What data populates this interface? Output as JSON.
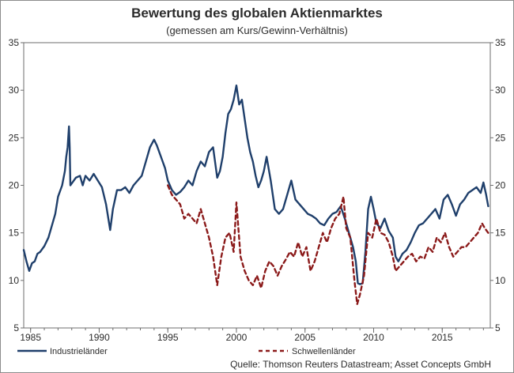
{
  "chart_data": {
    "type": "line",
    "title": "Bewertung des globalen Aktienmarktes",
    "subtitle": "(gemessen am Kurs/Gewinn-Verhältnis)",
    "xlabel": "",
    "ylabel": "",
    "xlim": [
      1984.5,
      2018.5
    ],
    "ylim": [
      5,
      35
    ],
    "y_ticks": [
      5,
      10,
      15,
      20,
      25,
      30,
      35
    ],
    "x_ticks": [
      1985,
      1990,
      1995,
      2000,
      2005,
      2010,
      2015
    ],
    "grid": false,
    "legend_position": "bottom",
    "source": "Quelle: Thomson Reuters Datastream; Asset Concepts GmbH",
    "colors": {
      "industrielaender": "#1f3f6b",
      "schwellenlaender": "#8b1a1a"
    },
    "series": [
      {
        "name": "Industrieländer",
        "style": "solid",
        "points": [
          [
            1984.5,
            13.2
          ],
          [
            1984.7,
            12.0
          ],
          [
            1984.9,
            11.0
          ],
          [
            1985.1,
            11.8
          ],
          [
            1985.3,
            12.0
          ],
          [
            1985.5,
            12.8
          ],
          [
            1985.7,
            13.0
          ],
          [
            1986.0,
            13.6
          ],
          [
            1986.3,
            14.5
          ],
          [
            1986.5,
            15.5
          ],
          [
            1986.8,
            17.0
          ],
          [
            1987.0,
            18.8
          ],
          [
            1987.3,
            20.0
          ],
          [
            1987.5,
            21.5
          ],
          [
            1987.6,
            23.0
          ],
          [
            1987.7,
            24.0
          ],
          [
            1987.8,
            26.2
          ],
          [
            1987.85,
            24.0
          ],
          [
            1987.9,
            20.0
          ],
          [
            1988.0,
            20.2
          ],
          [
            1988.3,
            20.8
          ],
          [
            1988.6,
            21.0
          ],
          [
            1988.8,
            20.0
          ],
          [
            1989.0,
            21.0
          ],
          [
            1989.3,
            20.5
          ],
          [
            1989.6,
            21.2
          ],
          [
            1989.9,
            20.5
          ],
          [
            1990.2,
            19.8
          ],
          [
            1990.5,
            18.0
          ],
          [
            1990.8,
            15.3
          ],
          [
            1991.0,
            17.5
          ],
          [
            1991.3,
            19.5
          ],
          [
            1991.6,
            19.5
          ],
          [
            1991.9,
            19.8
          ],
          [
            1992.2,
            19.2
          ],
          [
            1992.5,
            20.0
          ],
          [
            1992.8,
            20.5
          ],
          [
            1993.1,
            21.0
          ],
          [
            1993.4,
            22.5
          ],
          [
            1993.7,
            24.0
          ],
          [
            1994.0,
            24.8
          ],
          [
            1994.2,
            24.2
          ],
          [
            1994.5,
            23.0
          ],
          [
            1994.8,
            21.8
          ],
          [
            1995.0,
            20.5
          ],
          [
            1995.3,
            19.5
          ],
          [
            1995.6,
            19.0
          ],
          [
            1995.9,
            19.3
          ],
          [
            1996.2,
            19.8
          ],
          [
            1996.5,
            20.5
          ],
          [
            1996.8,
            20.0
          ],
          [
            1997.1,
            21.5
          ],
          [
            1997.4,
            22.5
          ],
          [
            1997.7,
            22.0
          ],
          [
            1998.0,
            23.5
          ],
          [
            1998.3,
            24.0
          ],
          [
            1998.6,
            20.8
          ],
          [
            1998.8,
            21.5
          ],
          [
            1999.0,
            23.0
          ],
          [
            1999.2,
            25.5
          ],
          [
            1999.4,
            27.5
          ],
          [
            1999.6,
            28.0
          ],
          [
            1999.8,
            29.0
          ],
          [
            2000.0,
            30.5
          ],
          [
            2000.2,
            28.5
          ],
          [
            2000.4,
            29.0
          ],
          [
            2000.6,
            27.0
          ],
          [
            2000.8,
            25.0
          ],
          [
            2001.0,
            23.5
          ],
          [
            2001.2,
            22.5
          ],
          [
            2001.4,
            21.0
          ],
          [
            2001.6,
            19.8
          ],
          [
            2001.8,
            20.5
          ],
          [
            2002.0,
            21.5
          ],
          [
            2002.2,
            23.0
          ],
          [
            2002.5,
            20.5
          ],
          [
            2002.8,
            17.5
          ],
          [
            2003.1,
            17.0
          ],
          [
            2003.4,
            17.5
          ],
          [
            2003.7,
            19.0
          ],
          [
            2004.0,
            20.5
          ],
          [
            2004.3,
            18.5
          ],
          [
            2004.6,
            18.0
          ],
          [
            2004.9,
            17.5
          ],
          [
            2005.2,
            17.0
          ],
          [
            2005.5,
            16.8
          ],
          [
            2005.8,
            16.5
          ],
          [
            2006.1,
            16.0
          ],
          [
            2006.4,
            15.8
          ],
          [
            2006.7,
            16.5
          ],
          [
            2007.0,
            17.0
          ],
          [
            2007.3,
            17.2
          ],
          [
            2007.6,
            17.8
          ],
          [
            2007.9,
            16.5
          ],
          [
            2008.2,
            15.0
          ],
          [
            2008.5,
            13.5
          ],
          [
            2008.7,
            12.0
          ],
          [
            2008.85,
            9.7
          ],
          [
            2009.0,
            9.6
          ],
          [
            2009.2,
            9.7
          ],
          [
            2009.4,
            13.0
          ],
          [
            2009.6,
            17.5
          ],
          [
            2009.8,
            18.8
          ],
          [
            2010.0,
            17.5
          ],
          [
            2010.2,
            16.0
          ],
          [
            2010.5,
            15.5
          ],
          [
            2010.8,
            16.5
          ],
          [
            2011.1,
            15.2
          ],
          [
            2011.4,
            14.5
          ],
          [
            2011.6,
            12.5
          ],
          [
            2011.8,
            12.0
          ],
          [
            2012.1,
            12.8
          ],
          [
            2012.4,
            13.2
          ],
          [
            2012.7,
            14.0
          ],
          [
            2013.0,
            15.0
          ],
          [
            2013.3,
            15.8
          ],
          [
            2013.6,
            16.0
          ],
          [
            2013.9,
            16.5
          ],
          [
            2014.2,
            17.0
          ],
          [
            2014.5,
            17.5
          ],
          [
            2014.8,
            16.5
          ],
          [
            2015.1,
            18.5
          ],
          [
            2015.4,
            19.0
          ],
          [
            2015.7,
            18.0
          ],
          [
            2016.0,
            16.8
          ],
          [
            2016.3,
            18.0
          ],
          [
            2016.6,
            18.5
          ],
          [
            2016.9,
            19.2
          ],
          [
            2017.2,
            19.5
          ],
          [
            2017.5,
            19.8
          ],
          [
            2017.8,
            19.2
          ],
          [
            2018.0,
            20.3
          ],
          [
            2018.2,
            19.0
          ],
          [
            2018.35,
            17.8
          ]
        ]
      },
      {
        "name": "Schwellenländer",
        "style": "dashed",
        "points": [
          [
            1995.0,
            20.0
          ],
          [
            1995.3,
            19.0
          ],
          [
            1995.6,
            18.5
          ],
          [
            1995.9,
            18.0
          ],
          [
            1996.2,
            16.5
          ],
          [
            1996.5,
            17.0
          ],
          [
            1996.8,
            16.5
          ],
          [
            1997.1,
            16.0
          ],
          [
            1997.4,
            17.5
          ],
          [
            1997.7,
            16.0
          ],
          [
            1998.0,
            14.5
          ],
          [
            1998.3,
            12.5
          ],
          [
            1998.6,
            9.5
          ],
          [
            1998.9,
            12.5
          ],
          [
            1999.2,
            14.5
          ],
          [
            1999.5,
            15.0
          ],
          [
            1999.8,
            13.0
          ],
          [
            2000.0,
            18.2
          ],
          [
            2000.3,
            12.5
          ],
          [
            2000.6,
            11.0
          ],
          [
            2000.9,
            10.0
          ],
          [
            2001.2,
            9.5
          ],
          [
            2001.5,
            10.5
          ],
          [
            2001.8,
            9.2
          ],
          [
            2002.1,
            11.0
          ],
          [
            2002.4,
            12.0
          ],
          [
            2002.7,
            11.5
          ],
          [
            2003.0,
            10.5
          ],
          [
            2003.3,
            11.5
          ],
          [
            2003.6,
            12.2
          ],
          [
            2003.9,
            13.0
          ],
          [
            2004.2,
            12.5
          ],
          [
            2004.5,
            14.0
          ],
          [
            2004.8,
            12.5
          ],
          [
            2005.1,
            13.5
          ],
          [
            2005.4,
            11.0
          ],
          [
            2005.7,
            12.0
          ],
          [
            2006.0,
            13.5
          ],
          [
            2006.3,
            15.0
          ],
          [
            2006.6,
            14.0
          ],
          [
            2006.9,
            15.5
          ],
          [
            2007.2,
            16.5
          ],
          [
            2007.5,
            17.0
          ],
          [
            2007.8,
            18.8
          ],
          [
            2008.0,
            15.5
          ],
          [
            2008.3,
            14.5
          ],
          [
            2008.6,
            10.0
          ],
          [
            2008.8,
            7.5
          ],
          [
            2009.0,
            8.5
          ],
          [
            2009.3,
            10.5
          ],
          [
            2009.6,
            15.0
          ],
          [
            2009.9,
            14.5
          ],
          [
            2010.2,
            16.5
          ],
          [
            2010.5,
            15.0
          ],
          [
            2010.8,
            14.8
          ],
          [
            2011.1,
            14.0
          ],
          [
            2011.4,
            12.5
          ],
          [
            2011.6,
            11.0
          ],
          [
            2011.9,
            11.5
          ],
          [
            2012.2,
            12.0
          ],
          [
            2012.5,
            12.5
          ],
          [
            2012.8,
            12.8
          ],
          [
            2013.1,
            12.0
          ],
          [
            2013.4,
            12.5
          ],
          [
            2013.7,
            12.3
          ],
          [
            2014.0,
            13.5
          ],
          [
            2014.3,
            13.0
          ],
          [
            2014.6,
            14.5
          ],
          [
            2014.9,
            14.0
          ],
          [
            2015.2,
            15.0
          ],
          [
            2015.5,
            13.5
          ],
          [
            2015.8,
            12.5
          ],
          [
            2016.1,
            13.0
          ],
          [
            2016.4,
            13.5
          ],
          [
            2016.7,
            13.5
          ],
          [
            2017.0,
            14.0
          ],
          [
            2017.3,
            14.5
          ],
          [
            2017.6,
            15.0
          ],
          [
            2017.9,
            16.0
          ],
          [
            2018.1,
            15.5
          ],
          [
            2018.35,
            15.0
          ]
        ]
      }
    ]
  }
}
